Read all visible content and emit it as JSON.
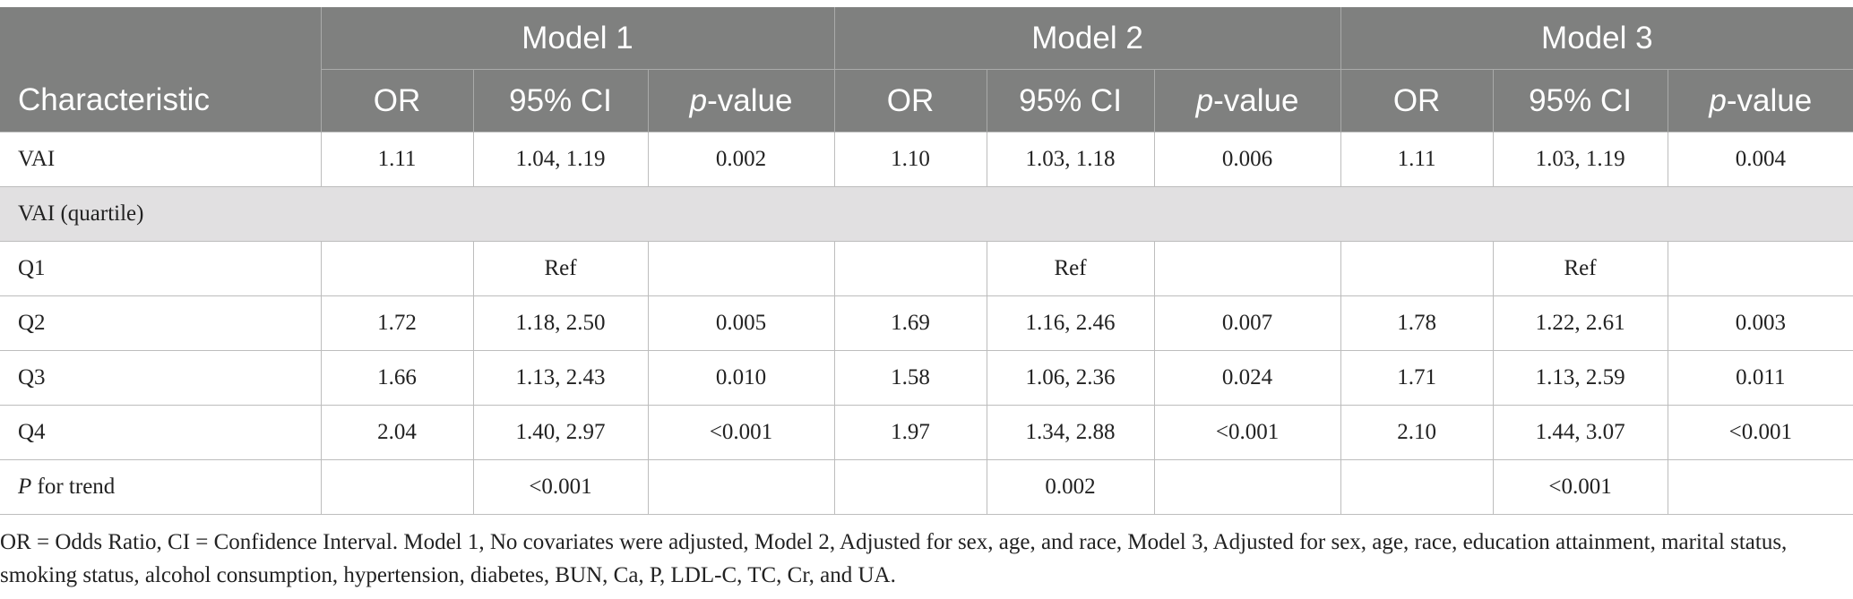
{
  "table": {
    "header": {
      "characteristic": "Characteristic",
      "models": [
        "Model 1",
        "Model 2",
        "Model 3"
      ],
      "or": "OR",
      "ci": "95% CI",
      "p_italic": "p",
      "p_rest": "-value"
    },
    "rows": {
      "vai": {
        "label": "VAI",
        "m1": [
          "1.11",
          "1.04, 1.19",
          "0.002"
        ],
        "m2": [
          "1.10",
          "1.03, 1.18",
          "0.006"
        ],
        "m3": [
          "1.11",
          "1.03, 1.19",
          "0.004"
        ]
      },
      "section": "VAI (quartile)",
      "q1": {
        "label": "Q1",
        "ref": "Ref"
      },
      "q2": {
        "label": "Q2",
        "m1": [
          "1.72",
          "1.18, 2.50",
          "0.005"
        ],
        "m2": [
          "1.69",
          "1.16, 2.46",
          "0.007"
        ],
        "m3": [
          "1.78",
          "1.22, 2.61",
          "0.003"
        ]
      },
      "q3": {
        "label": "Q3",
        "m1": [
          "1.66",
          "1.13, 2.43",
          "0.010"
        ],
        "m2": [
          "1.58",
          "1.06, 2.36",
          "0.024"
        ],
        "m3": [
          "1.71",
          "1.13, 2.59",
          "0.011"
        ]
      },
      "q4": {
        "label": "Q4",
        "m1": [
          "2.04",
          "1.40, 2.97",
          "<0.001"
        ],
        "m2": [
          "1.97",
          "1.34, 2.88",
          "<0.001"
        ],
        "m3": [
          "2.10",
          "1.44, 3.07",
          "<0.001"
        ]
      },
      "trend": {
        "label_italic": "P",
        "label_rest": " for trend",
        "m1": "<0.001",
        "m2": "0.002",
        "m3": "<0.001"
      }
    }
  },
  "footnote": "OR = Odds Ratio, CI = Confidence Interval. Model 1, No covariates were adjusted, Model 2, Adjusted for sex, age, and race, Model 3, Adjusted for sex, age, race, education attainment, marital status, smoking status, alcohol consumption, hypertension, diabetes, BUN, Ca, P, LDL-C, TC, Cr, and UA.",
  "colors": {
    "header_bg": "#7f807f",
    "section_bg": "#e1e0e1"
  }
}
